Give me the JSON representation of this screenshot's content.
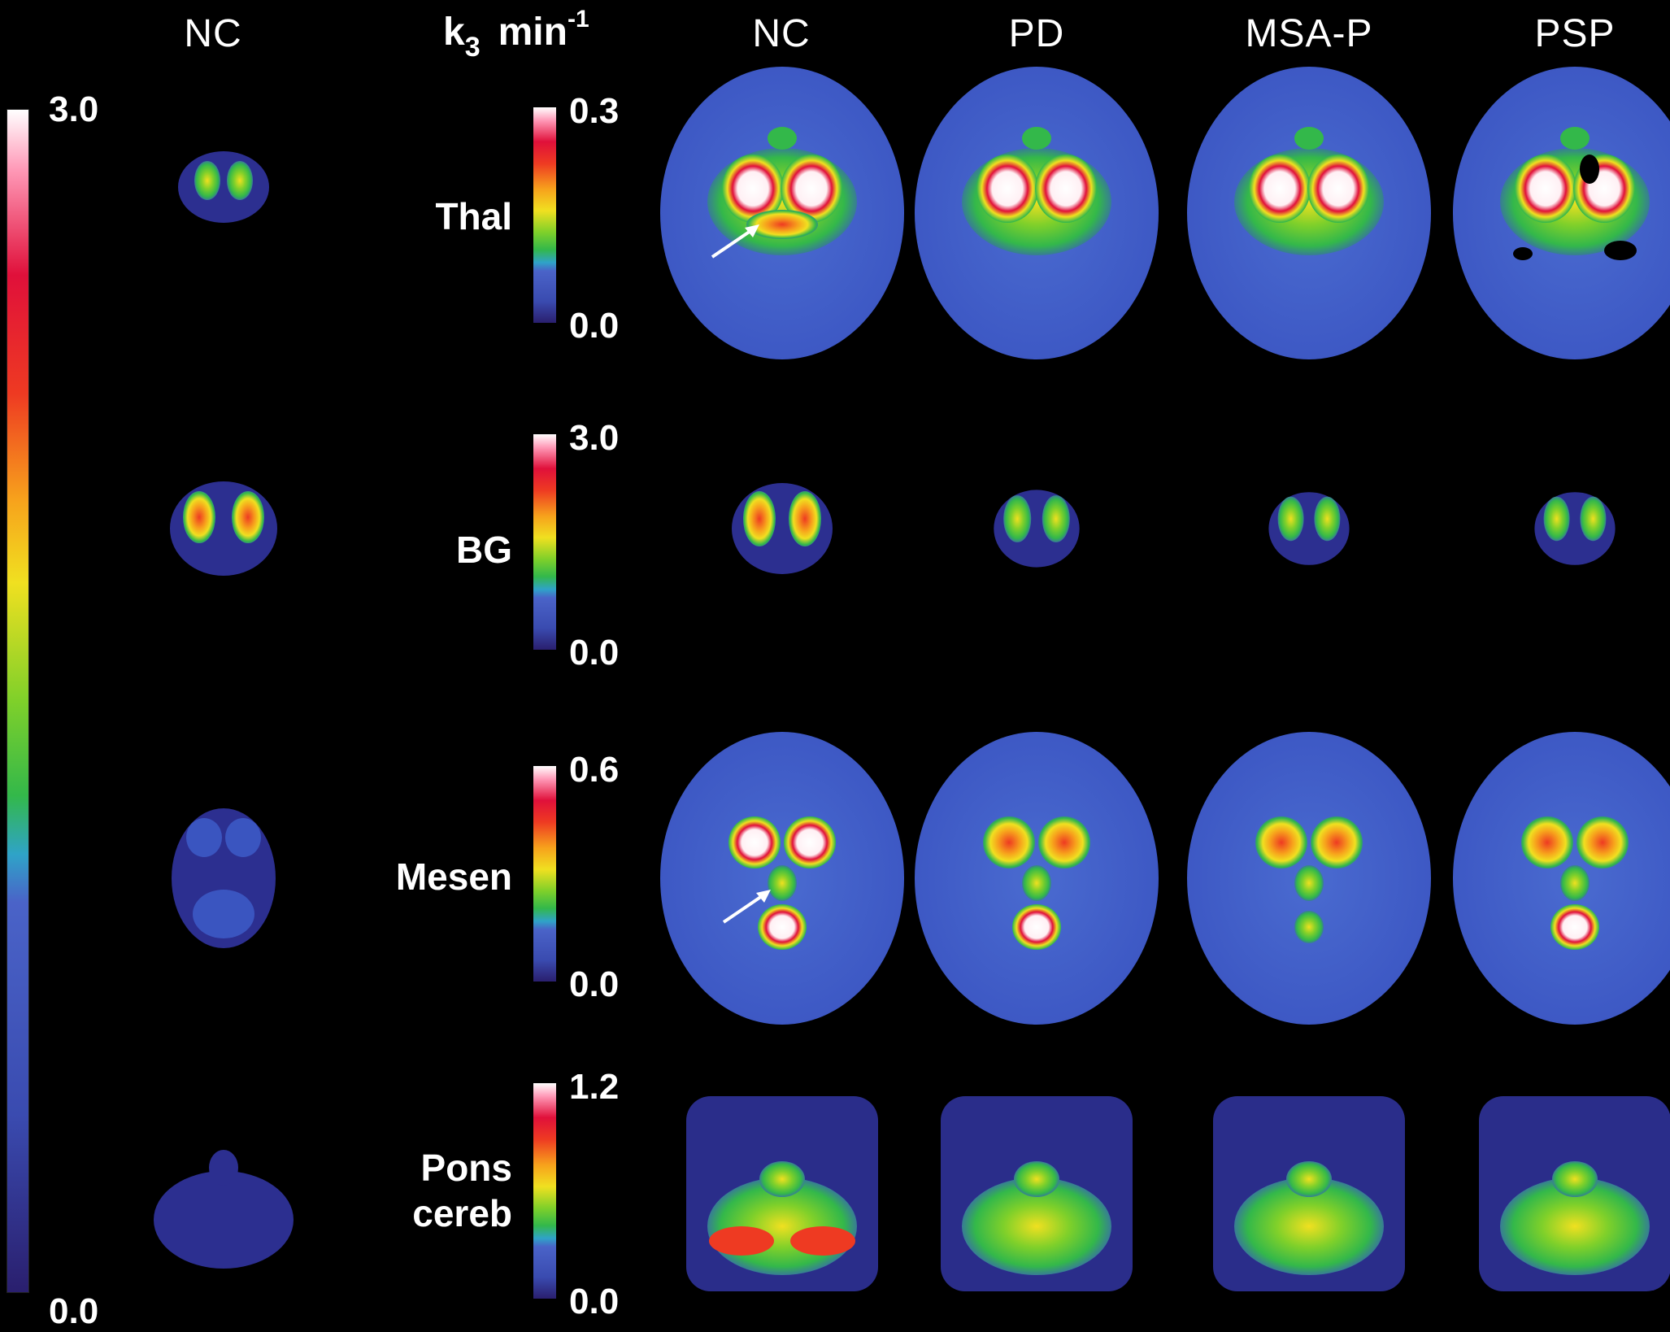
{
  "headers": {
    "left_nc": "NC",
    "k3": "k",
    "k3_sub": "3",
    "k3_unit": "min",
    "k3_sup": "-1",
    "col_nc": "NC",
    "col_pd": "PD",
    "col_msap": "MSA-P",
    "col_psp": "PSP"
  },
  "big_scale": {
    "max": "3.0",
    "min": "0.0"
  },
  "rows": [
    {
      "label": "Thal",
      "max": "0.3",
      "min": "0.0"
    },
    {
      "label": "BG",
      "max": "3.0",
      "min": "0.0"
    },
    {
      "label": "Mesen",
      "max": "0.6",
      "min": "0.0"
    },
    {
      "label": "Pons\ncereb",
      "max": "1.2",
      "min": "0.0"
    }
  ],
  "colors": {
    "background": "#000000",
    "colormap": [
      "#2a1f6e",
      "#3a4bb0",
      "#4a63c8",
      "#2fa3c8",
      "#33b84a",
      "#7fd02a",
      "#f0e020",
      "#f7a21c",
      "#ee3a22",
      "#e0103a",
      "#ff9ab8",
      "#ffffff"
    ]
  }
}
